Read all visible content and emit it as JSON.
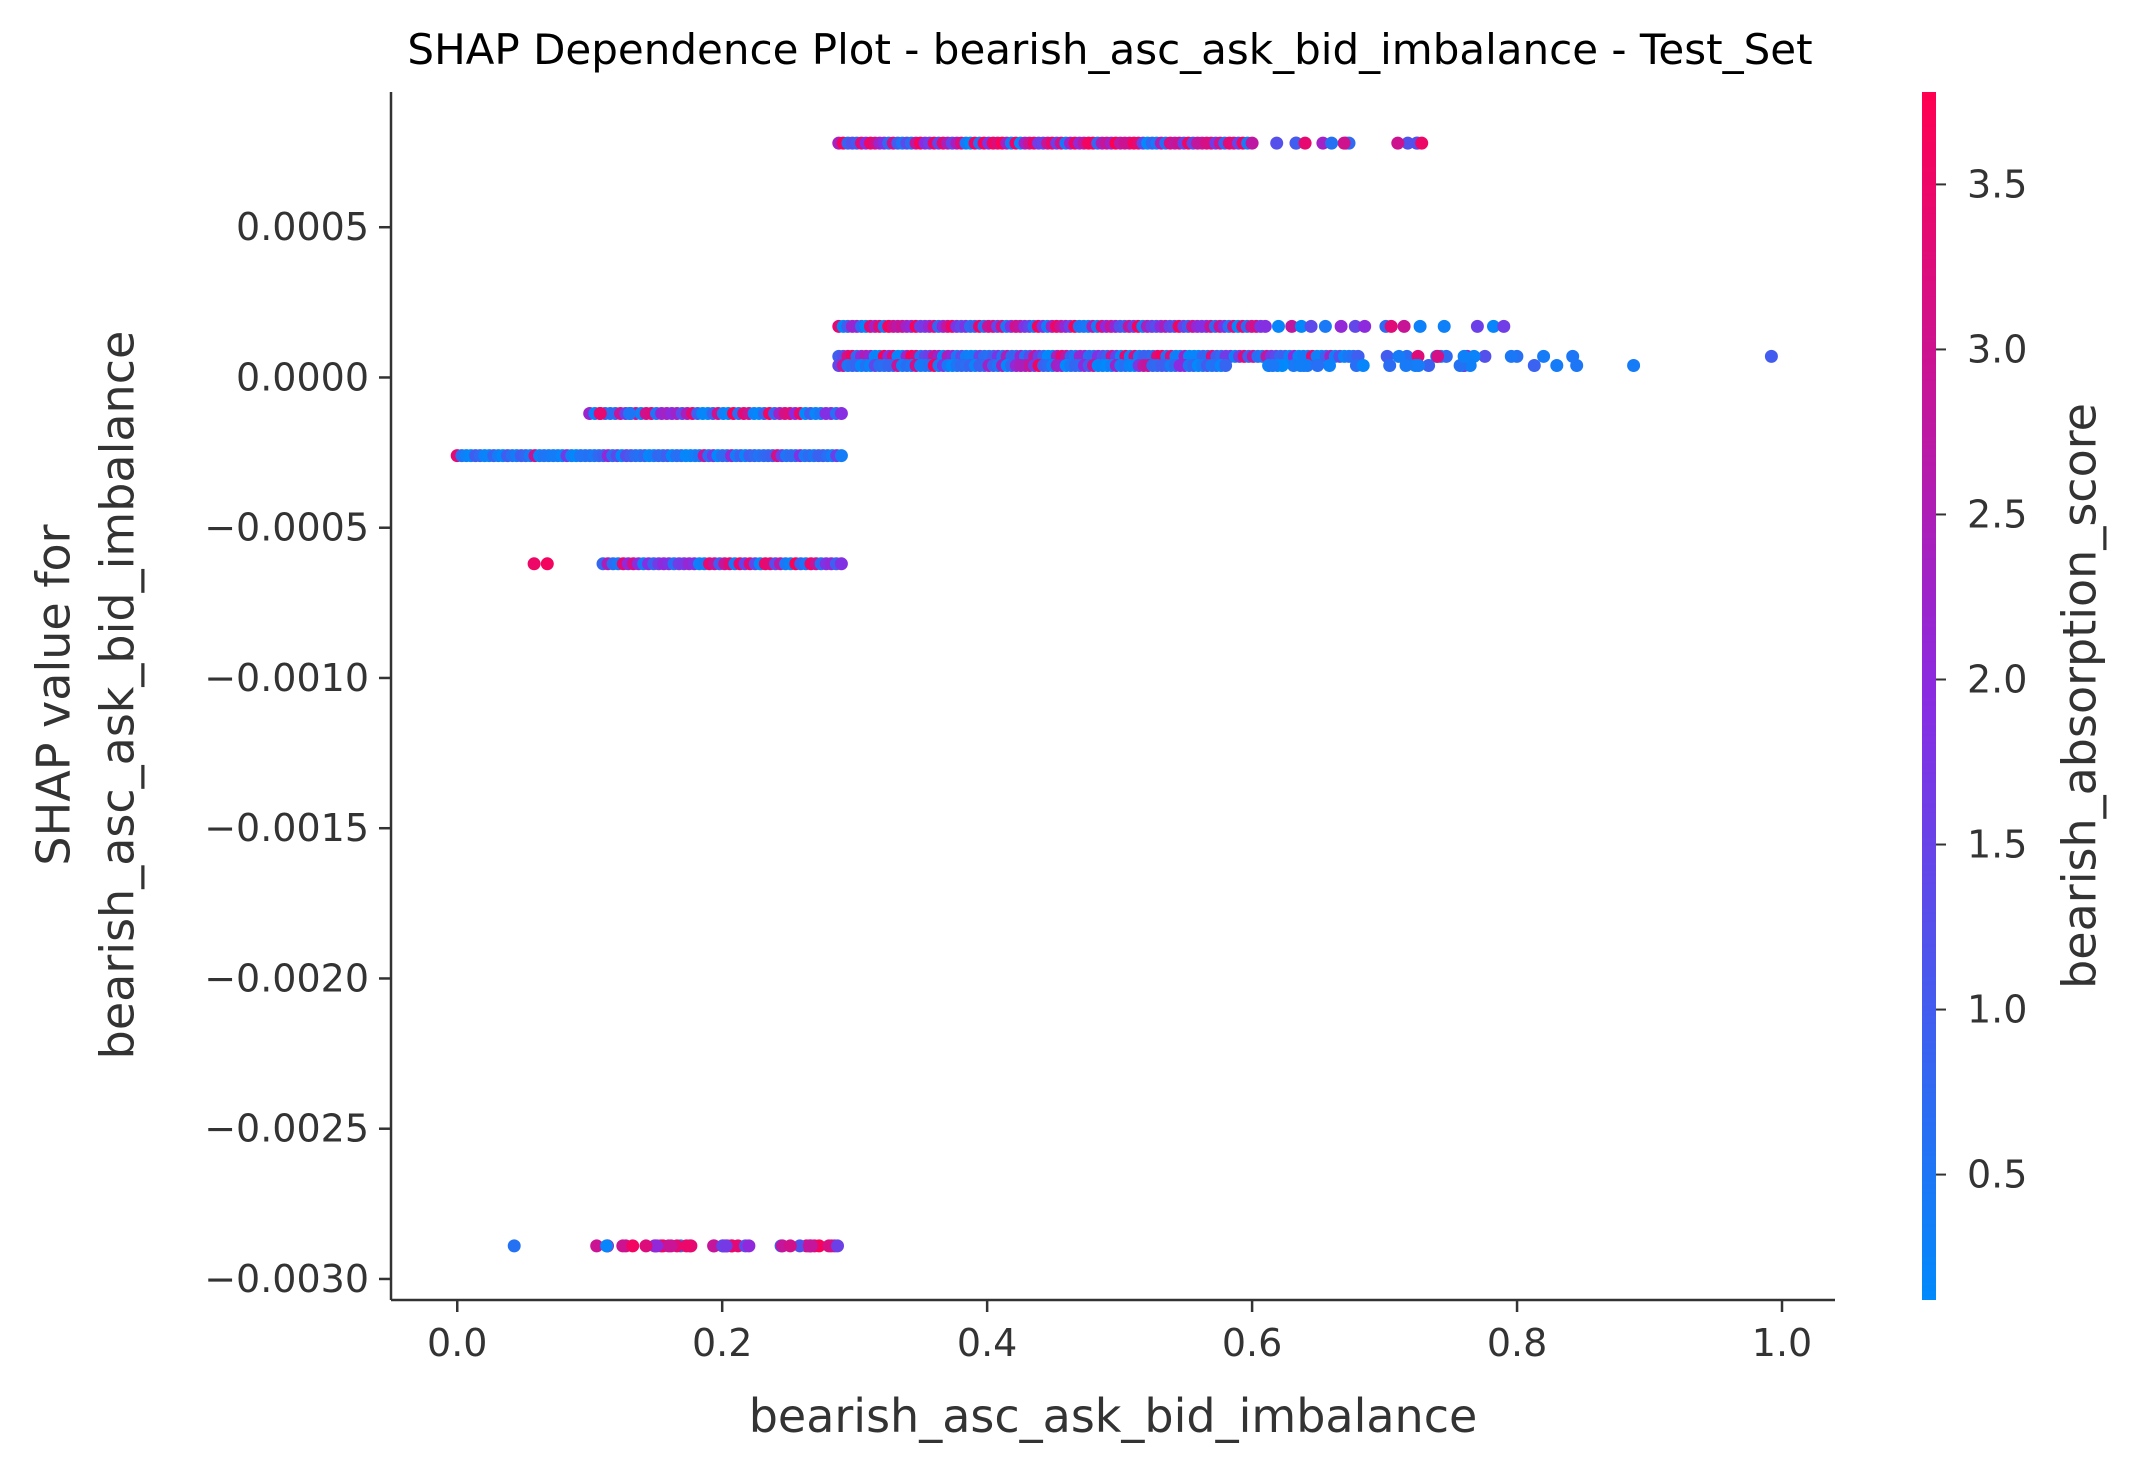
{
  "chart_data": {
    "type": "scatter",
    "title": "SHAP Dependence Plot - bearish_asc_ask_bid_imbalance - Test_Set",
    "xlabel": "bearish_asc_ask_bid_imbalance",
    "ylabel_lines": [
      "SHAP value for",
      "bearish_asc_ask_bid_imbalance"
    ],
    "xlim": [
      -0.05,
      1.04
    ],
    "ylim": [
      -0.00307,
      0.00095
    ],
    "x_ticks": [
      0.0,
      0.2,
      0.4,
      0.6,
      0.8,
      1.0
    ],
    "x_tick_labels": [
      "0.0",
      "0.2",
      "0.4",
      "0.6",
      "0.8",
      "1.0"
    ],
    "y_ticks": [
      0.0005,
      0.0,
      -0.0005,
      -0.001,
      -0.0015,
      -0.002,
      -0.0025,
      -0.003
    ],
    "y_tick_labels": [
      "0.0005",
      "0.0000",
      "−0.0005",
      "−0.0010",
      "−0.0015",
      "−0.0020",
      "−0.0025",
      "−0.0030"
    ],
    "grid": false,
    "colorbar": {
      "label": "bearish_absorption_score",
      "range": [
        0.12,
        3.78
      ],
      "ticks": [
        0.5,
        1.0,
        1.5,
        2.0,
        2.5,
        3.0,
        3.5
      ],
      "tick_labels": [
        "0.5",
        "1.0",
        "1.5",
        "2.0",
        "2.5",
        "3.0",
        "3.5"
      ],
      "color_low": "#008afb",
      "color_mid": "#8a2be2",
      "color_high": "#ff0051"
    },
    "bands": [
      {
        "y": 0.00078,
        "segments": [
          {
            "x": [
              0.288,
              0.6
            ],
            "density": 1.0,
            "color_mix": [
              0.22,
              0.28,
              0.5
            ]
          },
          {
            "x": [
              0.6,
              0.735
            ],
            "density": 0.25,
            "color_mix": [
              0.3,
              0.35,
              0.35
            ]
          }
        ]
      },
      {
        "y": 0.00017,
        "segments": [
          {
            "x": [
              0.288,
              0.61
            ],
            "density": 1.0,
            "color_mix": [
              0.25,
              0.45,
              0.3
            ]
          },
          {
            "x": [
              0.61,
              0.79
            ],
            "density": 0.22,
            "color_mix": [
              0.55,
              0.25,
              0.2
            ]
          }
        ]
      },
      {
        "y": 7e-05,
        "segments": [
          {
            "x": [
              0.288,
              0.68
            ],
            "density": 1.0,
            "color_mix": [
              0.55,
              0.3,
              0.15
            ]
          },
          {
            "x": [
              0.68,
              0.8
            ],
            "density": 0.35,
            "color_mix": [
              0.75,
              0.15,
              0.1
            ]
          }
        ]
      },
      {
        "y": 4e-05,
        "segments": [
          {
            "x": [
              0.288,
              0.58
            ],
            "density": 1.0,
            "color_mix": [
              0.7,
              0.2,
              0.1
            ]
          },
          {
            "x": [
              0.58,
              0.77
            ],
            "density": 0.35,
            "color_mix": [
              0.8,
              0.12,
              0.08
            ]
          }
        ]
      },
      {
        "y": -0.00012,
        "segments": [
          {
            "x": [
              0.1,
              0.29
            ],
            "density": 0.9,
            "color_mix": [
              0.4,
              0.3,
              0.3
            ]
          }
        ]
      },
      {
        "y": -0.00026,
        "segments": [
          {
            "x": [
              0.0,
              0.29
            ],
            "density": 1.0,
            "color_mix": [
              0.85,
              0.1,
              0.05
            ]
          }
        ]
      },
      {
        "y": -0.00062,
        "segments": [
          {
            "x": [
              0.11,
              0.29
            ],
            "density": 0.9,
            "color_mix": [
              0.3,
              0.3,
              0.4
            ]
          }
        ]
      },
      {
        "y": -0.00289,
        "segments": [
          {
            "x": [
              0.105,
              0.29
            ],
            "density": 0.85,
            "color_mix": [
              0.15,
              0.3,
              0.55
            ]
          }
        ]
      }
    ],
    "points": [
      {
        "x": 0.068,
        "y": -0.00062,
        "c": 3.6
      },
      {
        "x": 0.058,
        "y": -0.00062,
        "c": 3.5
      },
      {
        "x": 0.043,
        "y": -0.00289,
        "c": 0.6
      },
      {
        "x": 0.108,
        "y": -0.00012,
        "c": 3.4
      },
      {
        "x": 0.13,
        "y": -0.00012,
        "c": 0.5
      },
      {
        "x": 0.82,
        "y": 7e-05,
        "c": 0.4
      },
      {
        "x": 0.842,
        "y": 7e-05,
        "c": 0.5
      },
      {
        "x": 0.813,
        "y": 4e-05,
        "c": 0.9
      },
      {
        "x": 0.83,
        "y": 4e-05,
        "c": 0.4
      },
      {
        "x": 0.845,
        "y": 4e-05,
        "c": 0.5
      },
      {
        "x": 0.888,
        "y": 4e-05,
        "c": 0.4
      },
      {
        "x": 0.992,
        "y": 7e-05,
        "c": 1.0
      },
      {
        "x": 0.79,
        "y": 0.00017,
        "c": 1.6
      },
      {
        "x": 0.745,
        "y": 0.00017,
        "c": 0.3
      },
      {
        "x": 0.705,
        "y": 0.00017,
        "c": 3.3
      },
      {
        "x": 0.685,
        "y": 0.00017,
        "c": 2.0
      },
      {
        "x": 0.728,
        "y": 0.00078,
        "c": 3.5
      },
      {
        "x": 0.71,
        "y": 0.00078,
        "c": 3.0
      },
      {
        "x": 0.66,
        "y": 0.00078,
        "c": 0.6
      },
      {
        "x": 0.64,
        "y": 0.00078,
        "c": 3.4
      },
      {
        "x": 0.757,
        "y": 4e-05,
        "c": 0.6
      },
      {
        "x": 0.76,
        "y": 7e-05,
        "c": 0.3
      },
      {
        "x": 0.74,
        "y": 7e-05,
        "c": 3.1
      }
    ]
  }
}
